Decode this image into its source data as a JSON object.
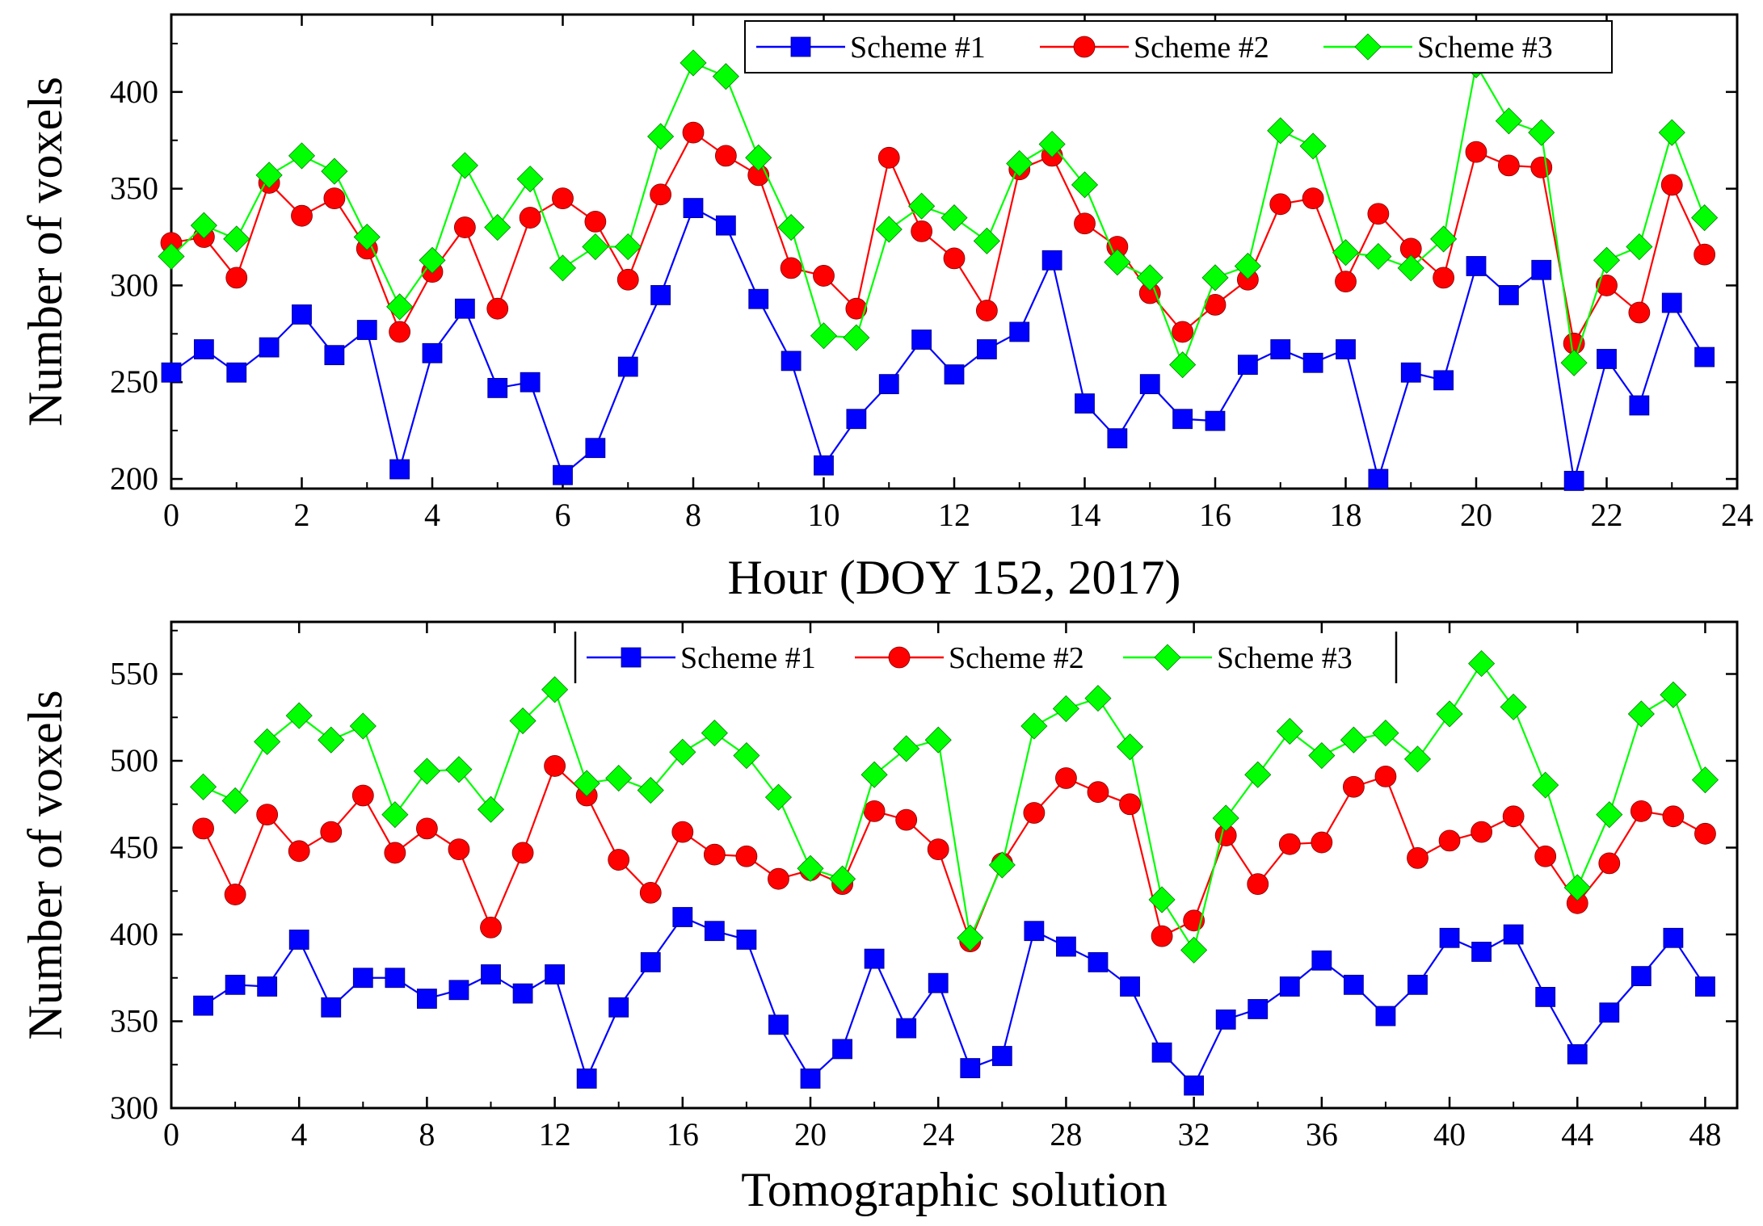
{
  "chart_data": [
    {
      "type": "line",
      "xlabel": "Hour (DOY 152, 2017)",
      "ylabel": "Number of voxels",
      "xlim": [
        0,
        24
      ],
      "ylim": [
        195,
        440
      ],
      "xticks": [
        0,
        2,
        4,
        6,
        8,
        10,
        12,
        14,
        16,
        18,
        20,
        22,
        24
      ],
      "yticks": [
        200,
        250,
        300,
        350,
        400
      ],
      "legend_position": "top-right",
      "x": [
        0,
        0.5,
        1,
        1.5,
        2,
        2.5,
        3,
        3.5,
        4,
        4.5,
        5,
        5.5,
        6,
        6.5,
        7,
        7.5,
        8,
        8.5,
        9,
        9.5,
        10,
        10.5,
        11,
        11.5,
        12,
        12.5,
        13,
        13.5,
        14,
        14.5,
        15,
        15.5,
        16,
        16.5,
        17,
        17.5,
        18,
        18.5,
        19,
        19.5,
        20,
        20.5,
        21,
        21.5,
        22,
        22.5,
        23,
        23.5
      ],
      "series": [
        {
          "name": "Scheme #1",
          "color": "#0000ff",
          "marker": "square",
          "values": [
            255,
            267,
            255,
            268,
            285,
            264,
            277,
            205,
            265,
            288,
            247,
            250,
            202,
            216,
            258,
            295,
            340,
            331,
            293,
            261,
            207,
            231,
            249,
            272,
            254,
            267,
            276,
            313,
            239,
            221,
            249,
            231,
            230,
            259,
            267,
            260,
            267,
            200,
            255,
            251,
            310,
            295,
            308,
            199,
            262,
            238,
            291,
            263
          ]
        },
        {
          "name": "Scheme #2",
          "color": "#ff0000",
          "marker": "circle",
          "values": [
            322,
            325,
            304,
            353,
            336,
            345,
            319,
            276,
            307,
            330,
            288,
            335,
            345,
            333,
            303,
            347,
            379,
            367,
            357,
            309,
            305,
            288,
            366,
            328,
            314,
            287,
            360,
            367,
            332,
            320,
            296,
            276,
            290,
            303,
            342,
            345,
            302,
            337,
            319,
            304,
            369,
            362,
            361,
            270,
            300,
            286,
            352,
            316
          ]
        },
        {
          "name": "Scheme #3",
          "color": "#00ff00",
          "marker": "diamond",
          "values": [
            315,
            331,
            324,
            357,
            367,
            359,
            325,
            289,
            313,
            362,
            330,
            355,
            309,
            320,
            320,
            377,
            415,
            408,
            366,
            330,
            274,
            273,
            329,
            341,
            335,
            323,
            363,
            373,
            352,
            312,
            304,
            259,
            304,
            310,
            380,
            372,
            317,
            315,
            309,
            324,
            414,
            385,
            379,
            260,
            313,
            320,
            379,
            335
          ]
        }
      ]
    },
    {
      "type": "line",
      "xlabel": "Tomographic solution",
      "ylabel": "Number of voxels",
      "xlim": [
        0,
        49
      ],
      "ylim": [
        300,
        580
      ],
      "xticks": [
        0,
        4,
        8,
        12,
        16,
        20,
        24,
        28,
        32,
        36,
        40,
        44,
        48
      ],
      "yticks": [
        300,
        350,
        400,
        450,
        500,
        550
      ],
      "legend_position": "top-center",
      "x": [
        1,
        2,
        3,
        4,
        5,
        6,
        7,
        8,
        9,
        10,
        11,
        12,
        13,
        14,
        15,
        16,
        17,
        18,
        19,
        20,
        21,
        22,
        23,
        24,
        25,
        26,
        27,
        28,
        29,
        30,
        31,
        32,
        33,
        34,
        35,
        36,
        37,
        38,
        39,
        40,
        41,
        42,
        43,
        44,
        45,
        46,
        47,
        48
      ],
      "series": [
        {
          "name": "Scheme #1",
          "color": "#0000ff",
          "marker": "square",
          "values": [
            359,
            371,
            370,
            397,
            358,
            375,
            375,
            363,
            368,
            377,
            366,
            377,
            317,
            358,
            384,
            410,
            402,
            397,
            348,
            317,
            334,
            386,
            346,
            372,
            323,
            330,
            402,
            393,
            384,
            370,
            332,
            313,
            351,
            357,
            370,
            385,
            371,
            353,
            371,
            398,
            390,
            400,
            364,
            331,
            355,
            376,
            398,
            370
          ]
        },
        {
          "name": "Scheme #2",
          "color": "#ff0000",
          "marker": "circle",
          "values": [
            461,
            423,
            469,
            448,
            459,
            480,
            447,
            461,
            449,
            404,
            447,
            497,
            480,
            443,
            424,
            459,
            446,
            445,
            432,
            437,
            429,
            471,
            466,
            449,
            396,
            441,
            470,
            490,
            482,
            475,
            399,
            408,
            457,
            429,
            452,
            453,
            485,
            491,
            444,
            454,
            459,
            468,
            445,
            418,
            441,
            471,
            468,
            458
          ]
        },
        {
          "name": "Scheme #3",
          "color": "#00ff00",
          "marker": "diamond",
          "values": [
            485,
            477,
            511,
            526,
            512,
            520,
            469,
            494,
            495,
            472,
            523,
            541,
            487,
            490,
            483,
            505,
            516,
            503,
            479,
            438,
            432,
            492,
            507,
            512,
            398,
            440,
            520,
            530,
            536,
            508,
            420,
            391,
            467,
            492,
            517,
            503,
            512,
            516,
            501,
            527,
            556,
            531,
            486,
            427,
            469,
            527,
            538,
            489
          ]
        }
      ]
    }
  ]
}
